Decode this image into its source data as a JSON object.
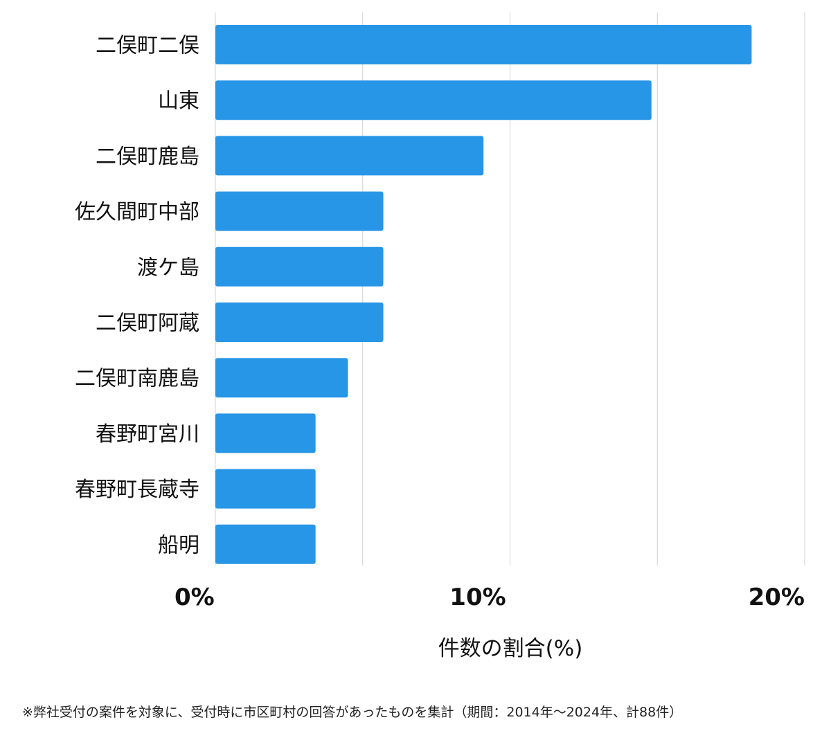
{
  "chart_data": {
    "type": "bar",
    "orientation": "horizontal",
    "categories": [
      "二俣町二俣",
      "山東",
      "二俣町鹿島",
      "佐久間町中部",
      "渡ケ島",
      "二俣町阿蔵",
      "二俣町南鹿島",
      "春野町宮川",
      "春野町長蔵寺",
      "船明"
    ],
    "values": [
      18.2,
      14.8,
      9.1,
      5.7,
      5.7,
      5.7,
      4.5,
      3.4,
      3.4,
      3.4
    ],
    "xlabel": "件数の割合(%)",
    "ylabel": "",
    "xlim": [
      0,
      20
    ],
    "xticks": [
      0,
      10,
      20
    ],
    "xtick_labels": [
      "0%",
      "10%",
      "20%"
    ],
    "gridlines": [
      0,
      5,
      10,
      15,
      20
    ],
    "grid": true,
    "bar_color": "#2896e6"
  },
  "footnote": "※弊社受付の案件を対象に、受付時に市区町村の回答があったものを集計（期間：2014年～2024年、計88件）"
}
